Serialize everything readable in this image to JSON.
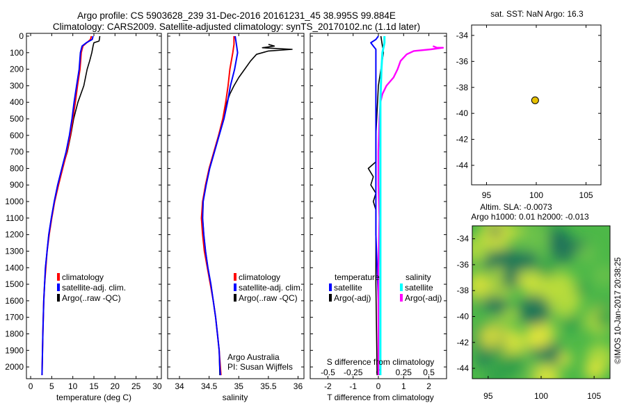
{
  "header": {
    "line1": "Argo profile: CS 5903628_239 31-Dec-2016 20161231_45 38.995S 99.884E",
    "line2": "Climatology: CARS2009. Satellite-adjusted climatology: synTS_20170102.nc (1.1d later)"
  },
  "depth_ticks": [
    "0",
    "100",
    "200",
    "300",
    "400",
    "500",
    "600",
    "700",
    "800",
    "900",
    "1000",
    "1100",
    "1200",
    "1300",
    "1400",
    "1500",
    "1600",
    "1700",
    "1800",
    "1900",
    "2000"
  ],
  "colors": {
    "climatology": "#ff0000",
    "satellite": "#0000ff",
    "argo": "#000000",
    "salinity_sat": "#00ffff",
    "salinity_argo": "#ff00ff",
    "dot": "#e6c000"
  },
  "chart_data": [
    {
      "type": "line",
      "title": "",
      "xlabel": "temperature (deg C)",
      "ylabel": "depth",
      "xlim": [
        -1,
        31
      ],
      "ylim": [
        2050,
        0
      ],
      "x_ticks": [
        "0",
        "5",
        "10",
        "15",
        "20",
        "25",
        "30"
      ],
      "legend": [
        "climatology",
        "satellite-adj. clim.",
        "Argo(..raw -QC)"
      ],
      "series": [
        {
          "name": "climatology",
          "points": [
            [
              14.4,
              0
            ],
            [
              14.2,
              20
            ],
            [
              13.3,
              40
            ],
            [
              12.4,
              60
            ],
            [
              12.0,
              100
            ],
            [
              11.7,
              200
            ],
            [
              11.1,
              300
            ],
            [
              10.6,
              400
            ],
            [
              10.0,
              500
            ],
            [
              9.4,
              600
            ],
            [
              8.6,
              700
            ],
            [
              7.6,
              800
            ],
            [
              6.6,
              900
            ],
            [
              5.7,
              1000
            ],
            [
              5.0,
              1100
            ],
            [
              4.4,
              1200
            ],
            [
              3.9,
              1300
            ],
            [
              3.6,
              1400
            ],
            [
              3.3,
              1500
            ],
            [
              3.1,
              1600
            ],
            [
              2.9,
              1800
            ],
            [
              2.7,
              2050
            ]
          ]
        },
        {
          "name": "satellite-adj. clim.",
          "points": [
            [
              14.8,
              0
            ],
            [
              14.6,
              20
            ],
            [
              13.2,
              40
            ],
            [
              12.2,
              60
            ],
            [
              11.8,
              100
            ],
            [
              11.5,
              200
            ],
            [
              10.9,
              300
            ],
            [
              10.3,
              400
            ],
            [
              9.8,
              500
            ],
            [
              9.2,
              600
            ],
            [
              8.4,
              700
            ],
            [
              7.4,
              800
            ],
            [
              6.4,
              900
            ],
            [
              5.6,
              1000
            ],
            [
              4.9,
              1100
            ],
            [
              4.3,
              1200
            ],
            [
              3.9,
              1300
            ],
            [
              3.5,
              1400
            ],
            [
              3.3,
              1500
            ],
            [
              3.1,
              1600
            ],
            [
              2.9,
              1800
            ],
            [
              2.7,
              2050
            ]
          ]
        },
        {
          "name": "Argo(..raw -QC)",
          "points": [
            [
              16.4,
              0
            ],
            [
              16.3,
              20
            ],
            [
              16.2,
              30
            ],
            [
              15.0,
              40
            ],
            [
              14.8,
              60
            ],
            [
              14.5,
              100
            ],
            [
              14.0,
              150
            ],
            [
              13.4,
              200
            ],
            [
              12.6,
              300
            ],
            [
              11.2,
              400
            ],
            [
              10.2,
              500
            ],
            [
              9.5,
              600
            ],
            [
              8.7,
              700
            ],
            [
              7.5,
              800
            ],
            [
              6.5,
              900
            ],
            [
              5.6,
              1000
            ],
            [
              4.9,
              1100
            ],
            [
              4.3,
              1200
            ],
            [
              3.9,
              1300
            ],
            [
              3.5,
              1400
            ],
            [
              3.3,
              1500
            ],
            [
              3.1,
              1600
            ],
            [
              2.9,
              1800
            ],
            [
              2.7,
              2050
            ]
          ]
        }
      ]
    },
    {
      "type": "line",
      "title": "",
      "xlabel": "salinity",
      "ylabel": "depth",
      "xlim": [
        33.8,
        36.1
      ],
      "ylim": [
        2050,
        0
      ],
      "x_ticks": [
        "34",
        "34.5",
        "35",
        "35.5",
        "36"
      ],
      "legend": [
        "climatology",
        "satellite-adj. clim.",
        "Argo(..raw -QC)"
      ],
      "annotation": [
        "Argo Australia",
        "PI: Susan Wijffels"
      ],
      "series": [
        {
          "name": "climatology",
          "points": [
            [
              34.92,
              0
            ],
            [
              34.92,
              50
            ],
            [
              34.9,
              100
            ],
            [
              34.85,
              200
            ],
            [
              34.82,
              300
            ],
            [
              34.78,
              400
            ],
            [
              34.73,
              500
            ],
            [
              34.66,
              600
            ],
            [
              34.58,
              700
            ],
            [
              34.5,
              800
            ],
            [
              34.44,
              900
            ],
            [
              34.39,
              1000
            ],
            [
              34.37,
              1100
            ],
            [
              34.39,
              1200
            ],
            [
              34.42,
              1300
            ],
            [
              34.47,
              1400
            ],
            [
              34.52,
              1500
            ],
            [
              34.57,
              1600
            ],
            [
              34.61,
              1700
            ],
            [
              34.64,
              1800
            ],
            [
              34.67,
              1900
            ],
            [
              34.69,
              2000
            ],
            [
              34.7,
              2050
            ]
          ]
        },
        {
          "name": "satellite-adj. clim.",
          "points": [
            [
              34.94,
              0
            ],
            [
              34.96,
              50
            ],
            [
              34.98,
              100
            ],
            [
              34.93,
              200
            ],
            [
              34.86,
              300
            ],
            [
              34.81,
              400
            ],
            [
              34.75,
              500
            ],
            [
              34.67,
              600
            ],
            [
              34.59,
              700
            ],
            [
              34.51,
              800
            ],
            [
              34.45,
              900
            ],
            [
              34.4,
              1000
            ],
            [
              34.39,
              1100
            ],
            [
              34.41,
              1200
            ],
            [
              34.44,
              1300
            ],
            [
              34.48,
              1400
            ],
            [
              34.53,
              1500
            ],
            [
              34.57,
              1600
            ],
            [
              34.61,
              1700
            ],
            [
              34.64,
              1800
            ],
            [
              34.67,
              1900
            ],
            [
              34.68,
              2000
            ],
            [
              34.69,
              2050
            ]
          ]
        },
        {
          "name": "Argo(..raw -QC)",
          "points": [
            [
              35.5,
              50
            ],
            [
              35.6,
              60
            ],
            [
              35.4,
              70
            ],
            [
              35.9,
              80
            ],
            [
              35.5,
              90
            ],
            [
              35.3,
              110
            ],
            [
              35.2,
              150
            ],
            [
              35.1,
              200
            ],
            [
              35.0,
              250
            ],
            [
              34.92,
              300
            ],
            [
              34.85,
              350
            ],
            [
              34.8,
              400
            ],
            [
              34.74,
              500
            ],
            [
              34.66,
              600
            ],
            [
              34.58,
              700
            ],
            [
              34.5,
              800
            ],
            [
              34.44,
              900
            ],
            [
              34.4,
              1000
            ],
            [
              34.39,
              1100
            ],
            [
              34.41,
              1200
            ],
            [
              34.44,
              1300
            ],
            [
              34.48,
              1400
            ],
            [
              34.53,
              1500
            ],
            [
              34.57,
              1600
            ],
            [
              34.61,
              1700
            ],
            [
              34.64,
              1800
            ],
            [
              34.67,
              1900
            ],
            [
              34.68,
              2050
            ]
          ]
        }
      ]
    },
    {
      "type": "line",
      "title": "",
      "xlabel": "T difference from climatology",
      "xlabel_top": "S difference from climatology",
      "ylabel": "depth",
      "xlim": [
        -2.7,
        2.7
      ],
      "xlim_top": [
        -0.675,
        0.675
      ],
      "ylim": [
        2050,
        0
      ],
      "x_ticks": [
        "-2",
        "-1",
        "0",
        "1",
        "2"
      ],
      "x_ticks_top": [
        "-0.5",
        "-0.25",
        "0",
        "0.25",
        "0.5"
      ],
      "legend_headers": [
        "temperature",
        "salinity"
      ],
      "legend": [
        "satellite",
        "Argo(-adj)",
        "satellite",
        "Argo(-adj)"
      ],
      "series": [
        {
          "name": "temperature satellite",
          "points": [
            [
              0.0,
              0
            ],
            [
              -0.1,
              20
            ],
            [
              -0.3,
              40
            ],
            [
              -0.2,
              60
            ],
            [
              -0.1,
              80
            ],
            [
              -0.1,
              150
            ],
            [
              -0.1,
              400
            ],
            [
              -0.1,
              800
            ],
            [
              -0.1,
              1200
            ],
            [
              0.0,
              1600
            ],
            [
              0.0,
              2050
            ]
          ]
        },
        {
          "name": "temperature Argo(-adj)",
          "points": [
            [
              0.1,
              0
            ],
            [
              0.2,
              100
            ],
            [
              0.1,
              200
            ],
            [
              0.0,
              300
            ],
            [
              -0.1,
              600
            ],
            [
              -0.1,
              760
            ],
            [
              -0.4,
              800
            ],
            [
              -0.2,
              850
            ],
            [
              -0.3,
              900
            ],
            [
              -0.1,
              950
            ],
            [
              -0.2,
              1000
            ],
            [
              -0.1,
              1050
            ],
            [
              -0.1,
              1200
            ],
            [
              -0.1,
              1500
            ],
            [
              -0.05,
              2050
            ]
          ]
        },
        {
          "name": "salinity satellite",
          "points": [
            [
              0.06,
              0
            ],
            [
              0.06,
              40
            ],
            [
              0.04,
              100
            ],
            [
              0.03,
              200
            ],
            [
              0.02,
              400
            ],
            [
              0.02,
              800
            ],
            [
              0.02,
              1200
            ],
            [
              0.02,
              1600
            ],
            [
              0.02,
              2050
            ]
          ]
        },
        {
          "name": "salinity Argo(-adj)",
          "points": [
            [
              0.54,
              60
            ],
            [
              0.58,
              70
            ],
            [
              0.64,
              70
            ],
            [
              0.52,
              80
            ],
            [
              0.35,
              90
            ],
            [
              0.28,
              110
            ],
            [
              0.22,
              150
            ],
            [
              0.19,
              200
            ],
            [
              0.15,
              250
            ],
            [
              0.08,
              300
            ],
            [
              0.04,
              350
            ],
            [
              0.02,
              400
            ],
            [
              0.01,
              500
            ],
            [
              0.0,
              700
            ],
            [
              0.0,
              900
            ],
            [
              0.01,
              1100
            ],
            [
              0.0,
              1400
            ],
            [
              0.0,
              2050
            ]
          ]
        }
      ]
    },
    {
      "type": "scatter",
      "title": "sat. SST: NaN Argo: 16.3",
      "xlim": [
        93.5,
        106.5
      ],
      "ylim": [
        -45.5,
        -33.2
      ],
      "x_ticks": [
        "95",
        "100",
        "105"
      ],
      "y_ticks": [
        "-34",
        "-36",
        "-38",
        "-40",
        "-42",
        "-44"
      ],
      "points": [
        [
          99.884,
          -38.995
        ]
      ]
    },
    {
      "type": "heatmap",
      "title_line1": "Altim. SLA: -0.0073",
      "title_line2": "Argo h1000: 0.01 h2000: -0.013",
      "xlim": [
        93.5,
        106.5
      ],
      "ylim": [
        -44.8,
        -33.0
      ],
      "x_ticks": [
        "95",
        "100",
        "105"
      ],
      "y_ticks": [
        "-34",
        "-36",
        "-38",
        "-40",
        "-42",
        "-44"
      ],
      "colormap": [
        "#1a6e5a",
        "#2e9e4a",
        "#6cc24a",
        "#b8dc3c",
        "#e8e83a"
      ]
    }
  ],
  "side_label": "©IMOS 10-Jan-2017 20:38:25"
}
